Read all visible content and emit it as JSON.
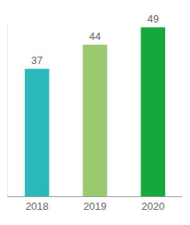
{
  "chart_data": {
    "type": "bar",
    "categories": [
      "2018",
      "2019",
      "2020"
    ],
    "values": [
      37,
      44,
      49
    ],
    "colors": [
      "#2bb8b8",
      "#9bc96f",
      "#17a83b"
    ],
    "ylim": [
      0,
      50
    ],
    "grid": false,
    "data_labels": true,
    "tick_labels": "x"
  }
}
